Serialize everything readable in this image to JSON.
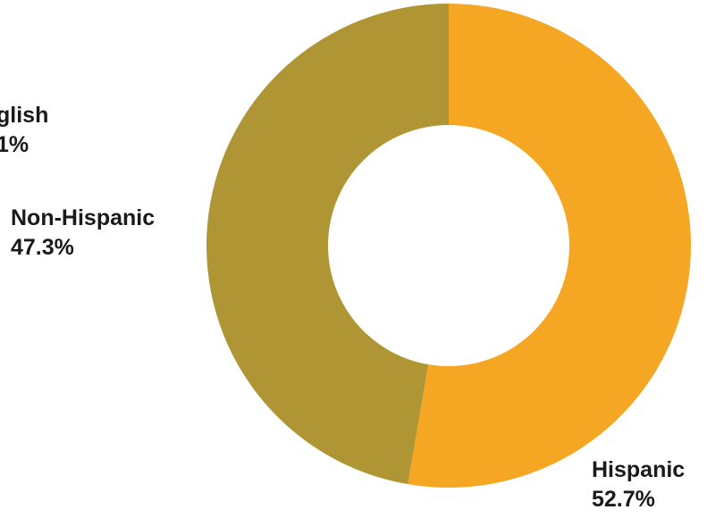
{
  "chart_data": {
    "type": "pie",
    "donut": true,
    "categories": [
      "Hispanic",
      "Non-Hispanic"
    ],
    "values": [
      52.7,
      47.3
    ],
    "data_labels": [
      "52.7%",
      "47.3%"
    ],
    "colors": [
      "#f5a623",
      "#b09535"
    ],
    "partial_label": {
      "name": "glish",
      "value": "1%"
    }
  }
}
